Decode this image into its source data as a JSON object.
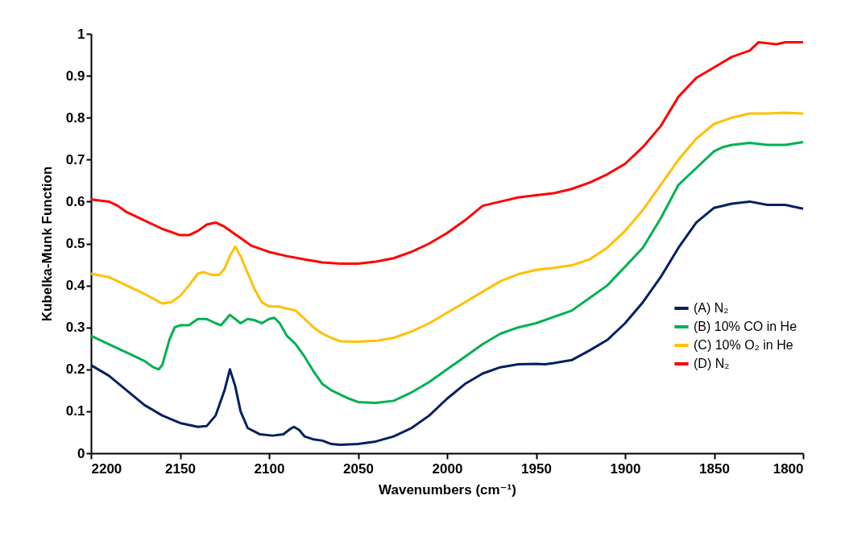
{
  "chart_data": {
    "type": "line",
    "xlabel": "Wavenumbers (cm⁻¹)",
    "ylabel": "Kubelka-Munk Function",
    "xlim": [
      2200,
      1800
    ],
    "ylim": [
      0,
      1
    ],
    "xticks": [
      2200,
      2150,
      2100,
      2050,
      2000,
      1950,
      1900,
      1850,
      1800
    ],
    "yticks": [
      0,
      0.1,
      0.2,
      0.3,
      0.4,
      0.5,
      0.6,
      0.7,
      0.8,
      0.9,
      1
    ],
    "grid": false,
    "legend": "bottom right",
    "series": [
      {
        "name": "(A) N₂",
        "color": "#002060",
        "x": [
          2200,
          2190,
          2180,
          2170,
          2160,
          2150,
          2140,
          2135,
          2130,
          2125,
          2122,
          2119,
          2116,
          2112,
          2105,
          2098,
          2092,
          2088,
          2086,
          2083,
          2080,
          2075,
          2070,
          2065,
          2060,
          2050,
          2040,
          2030,
          2020,
          2010,
          2000,
          1990,
          1980,
          1970,
          1960,
          1950,
          1945,
          1940,
          1930,
          1920,
          1910,
          1900,
          1890,
          1880,
          1870,
          1860,
          1850,
          1840,
          1830,
          1820,
          1810,
          1800
        ],
        "values": [
          0.21,
          0.185,
          0.15,
          0.115,
          0.09,
          0.072,
          0.063,
          0.065,
          0.09,
          0.15,
          0.2,
          0.16,
          0.1,
          0.06,
          0.045,
          0.042,
          0.045,
          0.058,
          0.063,
          0.055,
          0.04,
          0.033,
          0.03,
          0.022,
          0.02,
          0.022,
          0.028,
          0.04,
          0.06,
          0.09,
          0.13,
          0.165,
          0.19,
          0.205,
          0.212,
          0.213,
          0.212,
          0.215,
          0.222,
          0.245,
          0.27,
          0.31,
          0.36,
          0.42,
          0.49,
          0.55,
          0.585,
          0.595,
          0.6,
          0.592,
          0.592,
          0.583
        ]
      },
      {
        "name": "(B) 10% CO in He",
        "color": "#00b050",
        "x": [
          2200,
          2190,
          2180,
          2170,
          2165,
          2162,
          2160,
          2156,
          2153,
          2150,
          2145,
          2140,
          2135,
          2130,
          2127,
          2124,
          2122,
          2119,
          2116,
          2112,
          2108,
          2104,
          2100,
          2097,
          2094,
          2090,
          2085,
          2080,
          2075,
          2070,
          2065,
          2060,
          2055,
          2050,
          2040,
          2030,
          2020,
          2010,
          2000,
          1990,
          1980,
          1970,
          1960,
          1950,
          1940,
          1930,
          1920,
          1910,
          1900,
          1890,
          1880,
          1870,
          1860,
          1850,
          1845,
          1840,
          1830,
          1820,
          1810,
          1800
        ],
        "values": [
          0.28,
          0.26,
          0.24,
          0.22,
          0.205,
          0.2,
          0.21,
          0.27,
          0.3,
          0.305,
          0.305,
          0.32,
          0.32,
          0.31,
          0.305,
          0.32,
          0.33,
          0.32,
          0.31,
          0.32,
          0.317,
          0.31,
          0.32,
          0.323,
          0.31,
          0.28,
          0.26,
          0.23,
          0.195,
          0.165,
          0.15,
          0.14,
          0.13,
          0.122,
          0.12,
          0.125,
          0.145,
          0.17,
          0.2,
          0.23,
          0.26,
          0.285,
          0.3,
          0.31,
          0.325,
          0.34,
          0.37,
          0.4,
          0.445,
          0.49,
          0.56,
          0.64,
          0.68,
          0.72,
          0.73,
          0.735,
          0.74,
          0.735,
          0.735,
          0.742
        ]
      },
      {
        "name": "(C) 10% O₂ in He",
        "color": "#ffc000",
        "x": [
          2200,
          2190,
          2180,
          2170,
          2160,
          2155,
          2150,
          2145,
          2140,
          2137,
          2132,
          2128,
          2125,
          2122,
          2119,
          2116,
          2112,
          2108,
          2104,
          2100,
          2095,
          2090,
          2085,
          2080,
          2075,
          2070,
          2065,
          2060,
          2050,
          2040,
          2030,
          2020,
          2010,
          2000,
          1990,
          1980,
          1970,
          1960,
          1950,
          1940,
          1930,
          1920,
          1910,
          1900,
          1890,
          1880,
          1870,
          1860,
          1850,
          1840,
          1830,
          1820,
          1810,
          1800
        ],
        "values": [
          0.428,
          0.42,
          0.4,
          0.38,
          0.357,
          0.36,
          0.375,
          0.4,
          0.428,
          0.432,
          0.425,
          0.425,
          0.44,
          0.47,
          0.493,
          0.47,
          0.43,
          0.39,
          0.36,
          0.35,
          0.35,
          0.345,
          0.34,
          0.32,
          0.3,
          0.285,
          0.275,
          0.267,
          0.266,
          0.268,
          0.275,
          0.29,
          0.31,
          0.335,
          0.36,
          0.385,
          0.41,
          0.427,
          0.437,
          0.442,
          0.448,
          0.462,
          0.49,
          0.53,
          0.58,
          0.64,
          0.7,
          0.75,
          0.785,
          0.8,
          0.81,
          0.81,
          0.812,
          0.81
        ]
      },
      {
        "name": "(D) N₂",
        "color": "#ff0000",
        "x": [
          2200,
          2190,
          2185,
          2180,
          2170,
          2160,
          2150,
          2145,
          2140,
          2135,
          2130,
          2125,
          2120,
          2115,
          2110,
          2100,
          2090,
          2080,
          2070,
          2060,
          2050,
          2040,
          2030,
          2020,
          2010,
          2000,
          1990,
          1980,
          1970,
          1960,
          1950,
          1940,
          1930,
          1920,
          1910,
          1900,
          1890,
          1880,
          1870,
          1860,
          1850,
          1840,
          1830,
          1825,
          1815,
          1810,
          1800
        ],
        "values": [
          0.605,
          0.6,
          0.59,
          0.575,
          0.555,
          0.535,
          0.52,
          0.52,
          0.53,
          0.545,
          0.55,
          0.54,
          0.525,
          0.51,
          0.495,
          0.48,
          0.47,
          0.462,
          0.455,
          0.452,
          0.452,
          0.457,
          0.465,
          0.48,
          0.5,
          0.525,
          0.555,
          0.59,
          0.6,
          0.61,
          0.615,
          0.62,
          0.63,
          0.645,
          0.665,
          0.69,
          0.73,
          0.78,
          0.85,
          0.895,
          0.92,
          0.945,
          0.96,
          0.98,
          0.975,
          0.98,
          0.98
        ]
      }
    ]
  }
}
